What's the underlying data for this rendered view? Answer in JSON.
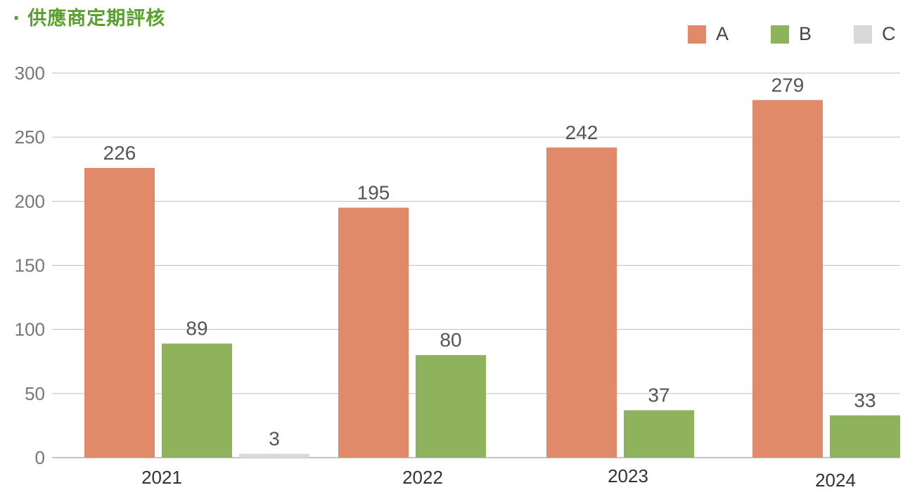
{
  "chart_data": {
    "type": "bar",
    "title": "供應商定期評核",
    "categories": [
      "2021",
      "2022",
      "2023",
      "2024"
    ],
    "series": [
      {
        "name": "A",
        "color": "#e08a6a",
        "values": [
          226,
          195,
          242,
          279
        ]
      },
      {
        "name": "B",
        "color": "#8fb35c",
        "values": [
          89,
          80,
          37,
          33
        ]
      },
      {
        "name": "C",
        "color": "#d9d9d9",
        "values": [
          3,
          null,
          null,
          null
        ]
      }
    ],
    "yticks": [
      0,
      50,
      100,
      150,
      200,
      250,
      300
    ],
    "ylim": [
      0,
      300
    ],
    "grid": true,
    "legend_position": "top-right",
    "xlabel": "",
    "ylabel": ""
  }
}
